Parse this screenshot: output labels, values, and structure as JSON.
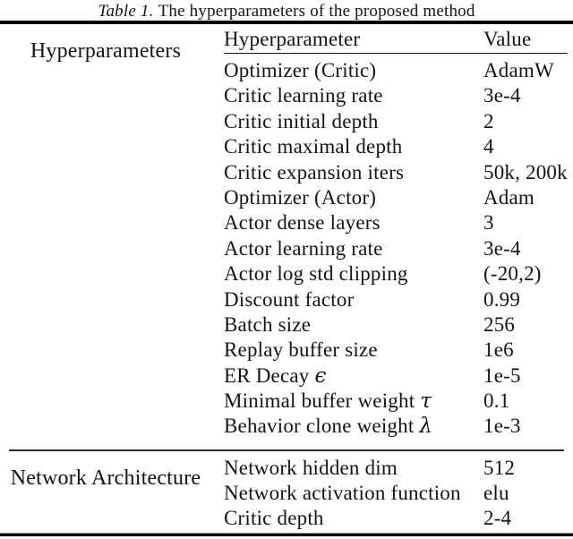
{
  "caption": {
    "label": "Table 1.",
    "text": "The hyperparameters of the proposed method"
  },
  "table": {
    "columns": {
      "param": "Hyperparameter",
      "value": "Value"
    },
    "sections": [
      {
        "name": "Hyperparameters",
        "rows": [
          {
            "param": "Optimizer (Critic)",
            "value": "AdamW"
          },
          {
            "param": "Critic learning rate",
            "value": "3e-4"
          },
          {
            "param": "Critic initial depth",
            "value": "2"
          },
          {
            "param": "Critic maximal depth",
            "value": "4"
          },
          {
            "param": "Critic expansion iters",
            "value": "50k, 200k"
          },
          {
            "param": "Optimizer (Actor)",
            "value": "Adam"
          },
          {
            "param": "Actor dense layers",
            "value": "3"
          },
          {
            "param": "Actor learning rate",
            "value": "3e-4"
          },
          {
            "param": "Actor log std clipping",
            "value": "(-20,2)"
          },
          {
            "param": "Discount factor",
            "value": "0.99"
          },
          {
            "param": "Batch size",
            "value": "256"
          },
          {
            "param": "Replay buffer size",
            "value": "1e6"
          },
          {
            "param": "ER Decay",
            "symbol": "ϵ",
            "value": "1e-5"
          },
          {
            "param": "Minimal buffer weight",
            "symbol": "τ",
            "value": "0.1"
          },
          {
            "param": "Behavior clone weight",
            "symbol": "λ",
            "value": "1e-3"
          }
        ]
      },
      {
        "name": "Network Architecture",
        "rows": [
          {
            "param": "Network hidden dim",
            "value": "512"
          },
          {
            "param": "Network activation function",
            "value": "elu"
          },
          {
            "param": "Critic depth",
            "value": "2-4"
          }
        ]
      }
    ]
  },
  "colors": {
    "background": "#ffffff",
    "text": "#141414",
    "rule_heavy": "#000000",
    "rule_light": "#2a2a2a"
  }
}
